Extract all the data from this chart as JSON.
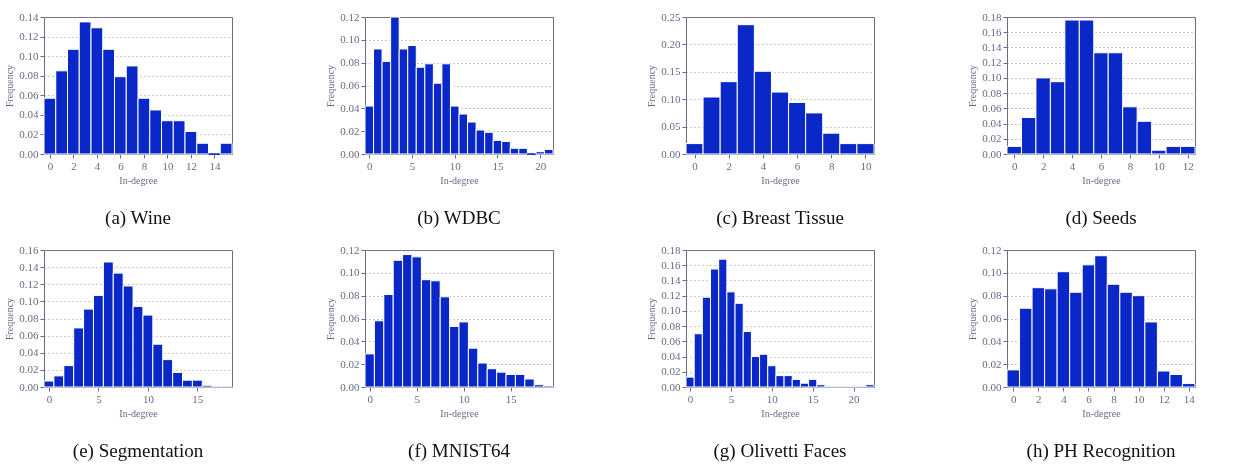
{
  "chart_data": [
    {
      "type": "histogram",
      "title": "(a) Wine",
      "xlabel": "In-degree",
      "ylabel": "Frequency",
      "color": "#0a28c8",
      "grid": "y",
      "bins": [
        -0.5,
        0.5,
        1.5,
        2.5,
        3.5,
        4.5,
        5.5,
        6.5,
        7.5,
        8.5,
        9.5,
        10.5,
        11.5,
        12.5,
        13.5,
        14.5,
        15.5
      ],
      "values": [
        0.057,
        0.085,
        0.107,
        0.135,
        0.129,
        0.107,
        0.079,
        0.09,
        0.057,
        0.045,
        0.034,
        0.034,
        0.023,
        0.011,
        0,
        0.011
      ],
      "xlim": [
        -0.5,
        15.5
      ],
      "xticks": [
        0,
        2,
        4,
        6,
        8,
        10,
        12,
        14
      ],
      "ylim": [
        0,
        0.14
      ],
      "yticks": [
        {
          "value": 0,
          "label": "0.00"
        },
        {
          "value": 0.02,
          "label": "0.02"
        },
        {
          "value": 0.04,
          "label": "0.04"
        },
        {
          "value": 0.06,
          "label": "0.06"
        },
        {
          "value": 0.08,
          "label": "0.08"
        },
        {
          "value": 0.1,
          "label": "0.10"
        },
        {
          "value": 0.12,
          "label": "0.12"
        },
        {
          "value": 0.14,
          "label": "0.14"
        }
      ]
    },
    {
      "type": "histogram",
      "title": "(b) WDBC",
      "xlabel": "In-degree",
      "ylabel": "Frequency",
      "color": "#0a28c8",
      "grid": "y",
      "bins": [
        -0.5,
        0.5,
        1.5,
        2.5,
        3.5,
        4.5,
        5.5,
        6.5,
        7.5,
        8.5,
        9.5,
        10.5,
        11.5,
        12.5,
        13.5,
        14.5,
        15.5,
        16.5,
        17.5,
        18.5,
        19.5,
        20.5,
        21.5
      ],
      "values": [
        0.042,
        0.092,
        0.081,
        0.12,
        0.092,
        0.095,
        0.076,
        0.079,
        0.062,
        0.079,
        0.042,
        0.035,
        0.028,
        0.021,
        0.019,
        0.012,
        0.011,
        0.005,
        0.005,
        0,
        0.002,
        0.004
      ],
      "xlim": [
        -0.5,
        21.5
      ],
      "xticks": [
        0,
        5,
        10,
        15,
        20
      ],
      "ylim": [
        0,
        0.12
      ],
      "yticks": [
        {
          "value": 0,
          "label": "0.00"
        },
        {
          "value": 0.02,
          "label": "0.02"
        },
        {
          "value": 0.04,
          "label": "0.04"
        },
        {
          "value": 0.06,
          "label": "0.06"
        },
        {
          "value": 0.08,
          "label": "0.08"
        },
        {
          "value": 0.1,
          "label": "0.10"
        },
        {
          "value": 0.12,
          "label": "0.12"
        }
      ]
    },
    {
      "type": "histogram",
      "title": "(c) Breast Tissue",
      "xlabel": "In-degree",
      "ylabel": "Frequency",
      "color": "#0a28c8",
      "grid": "y",
      "bins": [
        -0.5,
        0.5,
        1.5,
        2.5,
        3.5,
        4.5,
        5.5,
        6.5,
        7.5,
        8.5,
        9.5,
        10.5
      ],
      "values": [
        0.019,
        0.104,
        0.132,
        0.236,
        0.151,
        0.113,
        0.094,
        0.075,
        0.038,
        0.019,
        0.019
      ],
      "xlim": [
        -0.5,
        10.5
      ],
      "xticks": [
        0,
        2,
        4,
        6,
        8,
        10
      ],
      "ylim": [
        0,
        0.25
      ],
      "yticks": [
        {
          "value": 0,
          "label": "0.00"
        },
        {
          "value": 0.05,
          "label": "0.05"
        },
        {
          "value": 0.1,
          "label": "0.10"
        },
        {
          "value": 0.15,
          "label": "0.15"
        },
        {
          "value": 0.2,
          "label": "0.20"
        },
        {
          "value": 0.25,
          "label": "0.25"
        }
      ]
    },
    {
      "type": "histogram",
      "title": "(d) Seeds",
      "xlabel": "In-degree",
      "ylabel": "Frequency",
      "color": "#0a28c8",
      "grid": "y",
      "bins": [
        -0.5,
        0.5,
        1.5,
        2.5,
        3.5,
        4.5,
        5.5,
        6.5,
        7.5,
        8.5,
        9.5,
        10.5,
        11.5,
        12.5
      ],
      "values": [
        0.01,
        0.048,
        0.1,
        0.095,
        0.176,
        0.176,
        0.133,
        0.133,
        0.062,
        0.043,
        0.005,
        0.01,
        0.01
      ],
      "xlim": [
        -0.5,
        12.5
      ],
      "xticks": [
        0,
        2,
        4,
        6,
        8,
        10,
        12
      ],
      "ylim": [
        0,
        0.18
      ],
      "yticks": [
        {
          "value": 0,
          "label": "0.00"
        },
        {
          "value": 0.02,
          "label": "0.02"
        },
        {
          "value": 0.04,
          "label": "0.04"
        },
        {
          "value": 0.06,
          "label": "0.06"
        },
        {
          "value": 0.08,
          "label": "0.08"
        },
        {
          "value": 0.1,
          "label": "0.10"
        },
        {
          "value": 0.12,
          "label": "0.12"
        },
        {
          "value": 0.14,
          "label": "0.14"
        },
        {
          "value": 0.16,
          "label": "0.16"
        },
        {
          "value": 0.18,
          "label": "0.18"
        }
      ]
    },
    {
      "type": "histogram",
      "title": "(e) Segmentation",
      "xlabel": "In-degree",
      "ylabel": "Frequency",
      "color": "#0a28c8",
      "grid": "y",
      "bins": [
        -0.5,
        0.5,
        1.5,
        2.5,
        3.5,
        4.5,
        5.5,
        6.5,
        7.5,
        8.5,
        9.5,
        10.5,
        11.5,
        12.5,
        13.5,
        14.5,
        15.5,
        16.5,
        17.5,
        18.5
      ],
      "values": [
        0.007,
        0.013,
        0.025,
        0.069,
        0.091,
        0.107,
        0.146,
        0.133,
        0.118,
        0.094,
        0.084,
        0.05,
        0.032,
        0.017,
        0.008,
        0.008,
        0.002,
        0.001,
        0.001
      ],
      "xlim": [
        -0.5,
        18.5
      ],
      "xticks": [
        0,
        5,
        10,
        15
      ],
      "ylim": [
        0,
        0.16
      ],
      "yticks": [
        {
          "value": 0,
          "label": "0.00"
        },
        {
          "value": 0.02,
          "label": "0.02"
        },
        {
          "value": 0.04,
          "label": "0.04"
        },
        {
          "value": 0.06,
          "label": "0.06"
        },
        {
          "value": 0.08,
          "label": "0.08"
        },
        {
          "value": 0.1,
          "label": "0.10"
        },
        {
          "value": 0.12,
          "label": "0.12"
        },
        {
          "value": 0.14,
          "label": "0.14"
        },
        {
          "value": 0.16,
          "label": "0.16"
        }
      ]
    },
    {
      "type": "histogram",
      "title": "(f) MNIST64",
      "xlabel": "In-degree",
      "ylabel": "Frequency",
      "color": "#0a28c8",
      "grid": "y",
      "bins": [
        -0.5,
        0.5,
        1.5,
        2.5,
        3.5,
        4.5,
        5.5,
        6.5,
        7.5,
        8.5,
        9.5,
        10.5,
        11.5,
        12.5,
        13.5,
        14.5,
        15.5,
        16.5,
        17.5,
        18.5,
        19.5
      ],
      "values": [
        0.029,
        0.058,
        0.081,
        0.111,
        0.116,
        0.114,
        0.094,
        0.093,
        0.079,
        0.053,
        0.057,
        0.034,
        0.021,
        0.016,
        0.013,
        0.011,
        0.011,
        0.007,
        0.002,
        0.001
      ],
      "xlim": [
        -0.5,
        19.5
      ],
      "xticks": [
        0,
        5,
        10,
        15
      ],
      "ylim": [
        0,
        0.12
      ],
      "yticks": [
        {
          "value": 0,
          "label": "0.00"
        },
        {
          "value": 0.02,
          "label": "0.02"
        },
        {
          "value": 0.04,
          "label": "0.04"
        },
        {
          "value": 0.06,
          "label": "0.06"
        },
        {
          "value": 0.08,
          "label": "0.08"
        },
        {
          "value": 0.1,
          "label": "0.10"
        },
        {
          "value": 0.12,
          "label": "0.12"
        }
      ]
    },
    {
      "type": "histogram",
      "title": "(g) Olivetti Faces",
      "xlabel": "In-degree",
      "ylabel": "Frequency",
      "color": "#0a28c8",
      "grid": "y",
      "bins": [
        -0.5,
        0.5,
        1.5,
        2.5,
        3.5,
        4.5,
        5.5,
        6.5,
        7.5,
        8.5,
        9.5,
        10.5,
        11.5,
        12.5,
        13.5,
        14.5,
        15.5,
        16.5,
        17.5,
        18.5,
        19.5,
        20.5,
        21.5,
        22.5
      ],
      "values": [
        0.013,
        0.07,
        0.118,
        0.155,
        0.168,
        0.125,
        0.11,
        0.073,
        0.04,
        0.043,
        0.028,
        0.015,
        0.015,
        0.01,
        0.005,
        0.01,
        0.003,
        0.001,
        0.001,
        0.001,
        0.001,
        0.001,
        0.003
      ],
      "xlim": [
        -0.5,
        22.5
      ],
      "xticks": [
        0,
        5,
        10,
        15,
        20
      ],
      "ylim": [
        0,
        0.18
      ],
      "yticks": [
        {
          "value": 0,
          "label": "0.00"
        },
        {
          "value": 0.02,
          "label": "0.02"
        },
        {
          "value": 0.04,
          "label": "0.04"
        },
        {
          "value": 0.06,
          "label": "0.06"
        },
        {
          "value": 0.08,
          "label": "0.08"
        },
        {
          "value": 0.1,
          "label": "0.10"
        },
        {
          "value": 0.12,
          "label": "0.12"
        },
        {
          "value": 0.14,
          "label": "0.14"
        },
        {
          "value": 0.16,
          "label": "0.16"
        },
        {
          "value": 0.18,
          "label": "0.18"
        }
      ]
    },
    {
      "type": "histogram",
      "title": "(h) PH Recognition",
      "xlabel": "In-degree",
      "ylabel": "Frequency",
      "color": "#0a28c8",
      "grid": "y",
      "bins": [
        -0.5,
        0.5,
        1.5,
        2.5,
        3.5,
        4.5,
        5.5,
        6.5,
        7.5,
        8.5,
        9.5,
        10.5,
        11.5,
        12.5,
        13.5,
        14.5
      ],
      "values": [
        0.015,
        0.069,
        0.087,
        0.086,
        0.101,
        0.083,
        0.107,
        0.115,
        0.09,
        0.083,
        0.08,
        0.057,
        0.014,
        0.011,
        0.003
      ],
      "xlim": [
        -0.5,
        14.5
      ],
      "xticks": [
        0,
        2,
        4,
        6,
        8,
        10,
        12,
        14
      ],
      "ylim": [
        0,
        0.12
      ],
      "yticks": [
        {
          "value": 0,
          "label": "0.00"
        },
        {
          "value": 0.02,
          "label": "0.02"
        },
        {
          "value": 0.04,
          "label": "0.04"
        },
        {
          "value": 0.06,
          "label": "0.06"
        },
        {
          "value": 0.08,
          "label": "0.08"
        },
        {
          "value": 0.1,
          "label": "0.10"
        },
        {
          "value": 0.12,
          "label": "0.12"
        }
      ]
    }
  ]
}
